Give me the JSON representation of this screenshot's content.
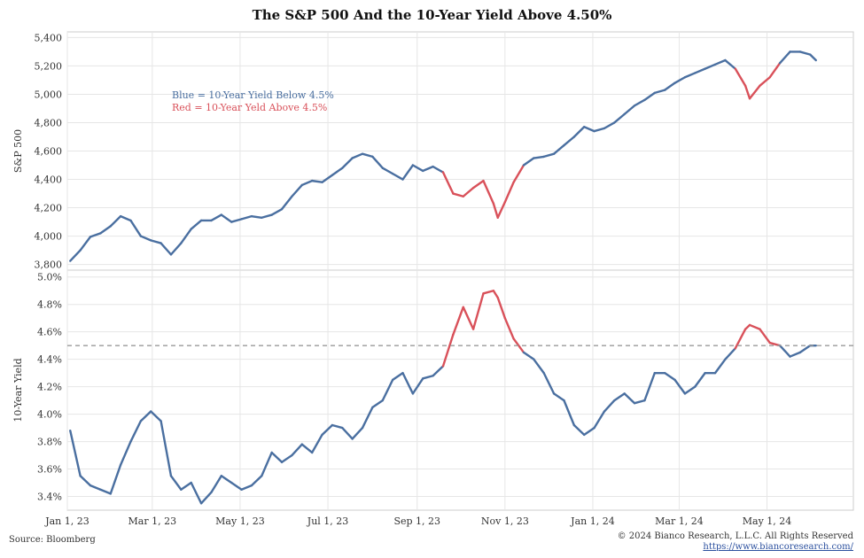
{
  "title": "The S&P 500 And the 10-Year Yield Above 4.50%",
  "source": "Source: Bloomberg",
  "copyright": "© 2024 Bianco Research, L.L.C. All Rights Reserved",
  "website": "https://www.biancoresearch.com/",
  "colors": {
    "below": "#4a6fa0",
    "above": "#d9515a",
    "threshold": "#999999",
    "grid": "#e6e6e6",
    "border": "#cccccc"
  },
  "legend": {
    "blue_label": "Blue = 10-Year Yield Below 4.5%",
    "red_label": "Red = 10-Year Yeld Above 4.5%"
  },
  "chart_data": [
    {
      "type": "line",
      "ylabel": "S&P 500",
      "ylim": [
        3760,
        5440
      ],
      "yticks": [
        3800,
        4000,
        4200,
        4400,
        4600,
        4800,
        5000,
        5200,
        5400
      ],
      "ytick_labels": [
        "3,800",
        "4,000",
        "4,200",
        "4,400",
        "4,600",
        "4,800",
        "5,000",
        "5,200",
        "5,400"
      ],
      "xlim": [
        "2023-01-01",
        "2024-06-30"
      ],
      "xticks": [
        "2023-01-01",
        "2023-03-01",
        "2023-05-01",
        "2023-07-01",
        "2023-09-01",
        "2023-11-01",
        "2024-01-01",
        "2024-03-01",
        "2024-05-01"
      ],
      "xtick_labels": [
        "Jan 1, 23",
        "Mar 1, 23",
        "May 1, 23",
        "Jul 1, 23",
        "Sep 1, 23",
        "Nov 1, 23",
        "Jan 1, 24",
        "Mar 1, 24",
        "May 1, 24"
      ],
      "grid": true,
      "x": [
        "2023-01-03",
        "2023-01-10",
        "2023-01-17",
        "2023-01-24",
        "2023-01-31",
        "2023-02-07",
        "2023-02-14",
        "2023-02-21",
        "2023-02-28",
        "2023-03-07",
        "2023-03-14",
        "2023-03-21",
        "2023-03-28",
        "2023-04-04",
        "2023-04-11",
        "2023-04-18",
        "2023-04-25",
        "2023-05-02",
        "2023-05-09",
        "2023-05-16",
        "2023-05-23",
        "2023-05-30",
        "2023-06-06",
        "2023-06-13",
        "2023-06-20",
        "2023-06-27",
        "2023-07-04",
        "2023-07-11",
        "2023-07-18",
        "2023-07-25",
        "2023-08-01",
        "2023-08-08",
        "2023-08-15",
        "2023-08-22",
        "2023-08-29",
        "2023-09-05",
        "2023-09-12",
        "2023-09-19",
        "2023-09-26",
        "2023-10-03",
        "2023-10-10",
        "2023-10-17",
        "2023-10-24",
        "2023-10-27",
        "2023-11-01",
        "2023-11-07",
        "2023-11-14",
        "2023-11-21",
        "2023-11-28",
        "2023-12-05",
        "2023-12-12",
        "2023-12-19",
        "2023-12-26",
        "2024-01-02",
        "2024-01-09",
        "2024-01-16",
        "2024-01-23",
        "2024-01-30",
        "2024-02-06",
        "2024-02-13",
        "2024-02-20",
        "2024-02-27",
        "2024-03-05",
        "2024-03-12",
        "2024-03-19",
        "2024-03-26",
        "2024-04-02",
        "2024-04-09",
        "2024-04-16",
        "2024-04-19",
        "2024-04-26",
        "2024-05-03",
        "2024-05-10",
        "2024-05-17",
        "2024-05-24",
        "2024-05-31",
        "2024-06-04"
      ],
      "values": [
        3825,
        3900,
        3995,
        4020,
        4070,
        4140,
        4110,
        4000,
        3970,
        3950,
        3870,
        3950,
        4050,
        4110,
        4110,
        4150,
        4100,
        4120,
        4140,
        4130,
        4150,
        4190,
        4280,
        4360,
        4390,
        4380,
        4430,
        4480,
        4550,
        4580,
        4560,
        4480,
        4440,
        4400,
        4500,
        4460,
        4490,
        4450,
        4300,
        4280,
        4340,
        4390,
        4230,
        4130,
        4240,
        4380,
        4500,
        4550,
        4560,
        4580,
        4640,
        4700,
        4770,
        4740,
        4760,
        4800,
        4860,
        4920,
        4960,
        5010,
        5030,
        5080,
        5120,
        5150,
        5180,
        5210,
        5240,
        5180,
        5060,
        4970,
        5060,
        5120,
        5220,
        5300,
        5300,
        5280,
        5240
      ],
      "series": [
        {
          "name": "10-Year Yield Below 4.5%",
          "color": "#4a6fa0"
        },
        {
          "name": "10-Year Yeld Above 4.5%",
          "color": "#d9515a"
        }
      ]
    },
    {
      "type": "line",
      "ylabel": "10-Year Yield",
      "ylim": [
        3.3,
        5.05
      ],
      "yticks": [
        3.4,
        3.6,
        3.8,
        4.0,
        4.2,
        4.4,
        4.6,
        4.8,
        5.0
      ],
      "ytick_labels": [
        "3.4%",
        "3.6%",
        "3.8%",
        "4.0%",
        "4.2%",
        "4.4%",
        "4.6%",
        "4.8%",
        "5.0%"
      ],
      "xlim": [
        "2023-01-01",
        "2024-06-30"
      ],
      "threshold": 4.5,
      "grid": true,
      "x": [
        "2023-01-03",
        "2023-01-10",
        "2023-01-17",
        "2023-01-24",
        "2023-01-31",
        "2023-02-07",
        "2023-02-14",
        "2023-02-21",
        "2023-02-28",
        "2023-03-07",
        "2023-03-14",
        "2023-03-21",
        "2023-03-28",
        "2023-04-04",
        "2023-04-11",
        "2023-04-18",
        "2023-04-25",
        "2023-05-02",
        "2023-05-09",
        "2023-05-16",
        "2023-05-23",
        "2023-05-30",
        "2023-06-06",
        "2023-06-13",
        "2023-06-20",
        "2023-06-27",
        "2023-07-04",
        "2023-07-11",
        "2023-07-18",
        "2023-07-25",
        "2023-08-01",
        "2023-08-08",
        "2023-08-15",
        "2023-08-22",
        "2023-08-29",
        "2023-09-05",
        "2023-09-12",
        "2023-09-19",
        "2023-09-26",
        "2023-10-03",
        "2023-10-10",
        "2023-10-17",
        "2023-10-24",
        "2023-10-27",
        "2023-11-01",
        "2023-11-07",
        "2023-11-14",
        "2023-11-21",
        "2023-11-28",
        "2023-12-05",
        "2023-12-12",
        "2023-12-19",
        "2023-12-26",
        "2024-01-02",
        "2024-01-09",
        "2024-01-16",
        "2024-01-23",
        "2024-01-30",
        "2024-02-06",
        "2024-02-13",
        "2024-02-20",
        "2024-02-27",
        "2024-03-05",
        "2024-03-12",
        "2024-03-19",
        "2024-03-26",
        "2024-04-02",
        "2024-04-09",
        "2024-04-16",
        "2024-04-19",
        "2024-04-26",
        "2024-05-03",
        "2024-05-10",
        "2024-05-17",
        "2024-05-24",
        "2024-05-31",
        "2024-06-04"
      ],
      "values": [
        3.88,
        3.55,
        3.48,
        3.45,
        3.42,
        3.63,
        3.8,
        3.95,
        4.02,
        3.95,
        3.55,
        3.45,
        3.5,
        3.35,
        3.43,
        3.55,
        3.5,
        3.45,
        3.48,
        3.55,
        3.72,
        3.65,
        3.7,
        3.78,
        3.72,
        3.85,
        3.92,
        3.9,
        3.82,
        3.9,
        4.05,
        4.1,
        4.25,
        4.3,
        4.15,
        4.26,
        4.28,
        4.35,
        4.58,
        4.78,
        4.62,
        4.88,
        4.9,
        4.85,
        4.7,
        4.55,
        4.45,
        4.4,
        4.3,
        4.15,
        4.1,
        3.92,
        3.85,
        3.9,
        4.02,
        4.1,
        4.15,
        4.08,
        4.1,
        4.3,
        4.3,
        4.25,
        4.15,
        4.2,
        4.3,
        4.3,
        4.4,
        4.48,
        4.62,
        4.65,
        4.62,
        4.52,
        4.5,
        4.42,
        4.45,
        4.5,
        4.5
      ],
      "series": [
        {
          "name": "10-Year Yield Below 4.5%",
          "color": "#4a6fa0"
        },
        {
          "name": "10-Year Yeld Above 4.5%",
          "color": "#d9515a"
        }
      ]
    }
  ]
}
